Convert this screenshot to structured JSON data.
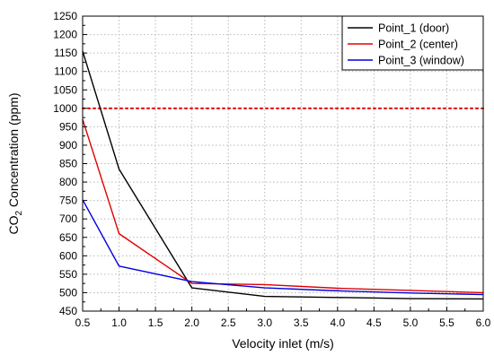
{
  "chart_data": {
    "type": "line",
    "xlabel": "Velocity inlet (m/s)",
    "ylabel": {
      "prefix": "CO",
      "subscript": "2",
      "suffix": " Concentration (ppm)"
    },
    "xlim": [
      0.5,
      6.0
    ],
    "ylim": [
      450,
      1250
    ],
    "xticks": [
      "0.5",
      "1.0",
      "1.5",
      "2.0",
      "2.5",
      "3.0",
      "3.5",
      "4.0",
      "4.5",
      "5.0",
      "5.5",
      "6.0"
    ],
    "yticks": [
      "450",
      "500",
      "550",
      "600",
      "650",
      "700",
      "750",
      "800",
      "850",
      "900",
      "950",
      "1000",
      "1050",
      "1100",
      "1150",
      "1200",
      "1250"
    ],
    "grid": true,
    "legend_position": "top-right",
    "reference_line": {
      "y": 1000,
      "color": "#e00000",
      "style": "dotted"
    },
    "series": [
      {
        "name": "Point_1 (door)",
        "color": "#000000",
        "x": [
          0.5,
          1.0,
          2.0,
          3.0,
          4.0,
          5.0,
          6.0
        ],
        "y": [
          1155,
          835,
          513,
          490,
          487,
          484,
          483
        ]
      },
      {
        "name": "Point_2 (center)",
        "color": "#e00000",
        "x": [
          0.5,
          1.0,
          2.0,
          3.0,
          4.0,
          5.0,
          6.0
        ],
        "y": [
          970,
          660,
          525,
          522,
          512,
          506,
          500
        ]
      },
      {
        "name": "Point_3 (window)",
        "color": "#0000e0",
        "x": [
          0.5,
          1.0,
          2.0,
          3.0,
          4.0,
          5.0,
          6.0
        ],
        "y": [
          752,
          572,
          530,
          513,
          505,
          499,
          495
        ]
      }
    ]
  }
}
